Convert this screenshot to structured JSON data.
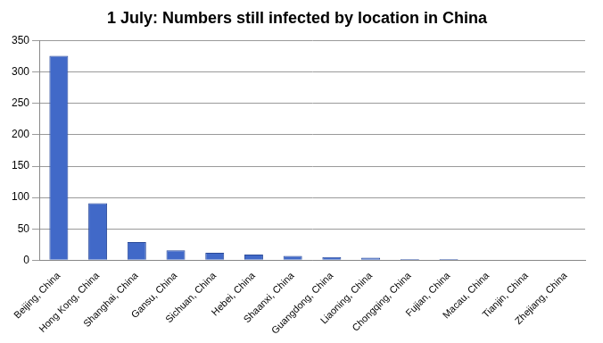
{
  "chart_data": {
    "type": "bar",
    "title": "1 July: Numbers still infected by location in China",
    "categories": [
      "Beijing, China",
      "Hong Kong, China",
      "Shanghai, China",
      "Gansu, China",
      "Sichuan, China",
      "Hebei, China",
      "Shaanxi, China",
      "Guangdong, China",
      "Liaoning, China",
      "Chongqing, China",
      "Fujian, China",
      "Macau, China",
      "Tianjin, China",
      "Zhejiang, China"
    ],
    "values": [
      326,
      91,
      29,
      16,
      12,
      9,
      7,
      5,
      4,
      2,
      2,
      1,
      1,
      1
    ],
    "color": "#4169c8",
    "ylim": [
      0,
      350
    ],
    "yticks": [
      0,
      50,
      100,
      150,
      200,
      250,
      300,
      350
    ],
    "grid": true
  }
}
